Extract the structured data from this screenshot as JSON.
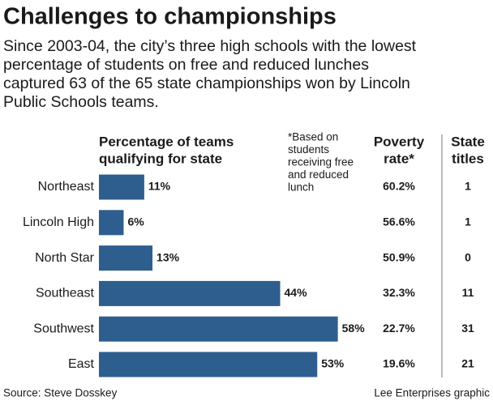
{
  "chart_data": {
    "type": "bar",
    "title": "Challenges to championships",
    "subtitle": [
      "Since 2003-04, the city’s three high schools with the lowest",
      "percentage of students on free and reduced lunches",
      "captured 63 of the 65 state championships won by Lincoln",
      "Public Schools teams."
    ],
    "value_header": [
      "Percentage of teams",
      "qualifying for state"
    ],
    "note": [
      "*Based on",
      "students",
      "receiving free",
      "and reduced",
      "lunch"
    ],
    "poverty_header": [
      "Poverty",
      "rate*"
    ],
    "titles_header": [
      "State",
      "titles"
    ],
    "categories": [
      "Northeast",
      "Lincoln High",
      "North Star",
      "Southeast",
      "Southwest",
      "East"
    ],
    "values": [
      11,
      6,
      13,
      44,
      58,
      53
    ],
    "value_labels": [
      "11%",
      "6%",
      "13%",
      "44%",
      "58%",
      "53%"
    ],
    "color": "#2d5e8e",
    "poverty_rate": [
      "60.2%",
      "56.6%",
      "50.9%",
      "32.3%",
      "22.7%",
      "19.6%"
    ],
    "state_titles": [
      1,
      1,
      0,
      11,
      31,
      21
    ],
    "source": "Source: Steve Dosskey",
    "credit": "Lee Enterprises graphic"
  }
}
